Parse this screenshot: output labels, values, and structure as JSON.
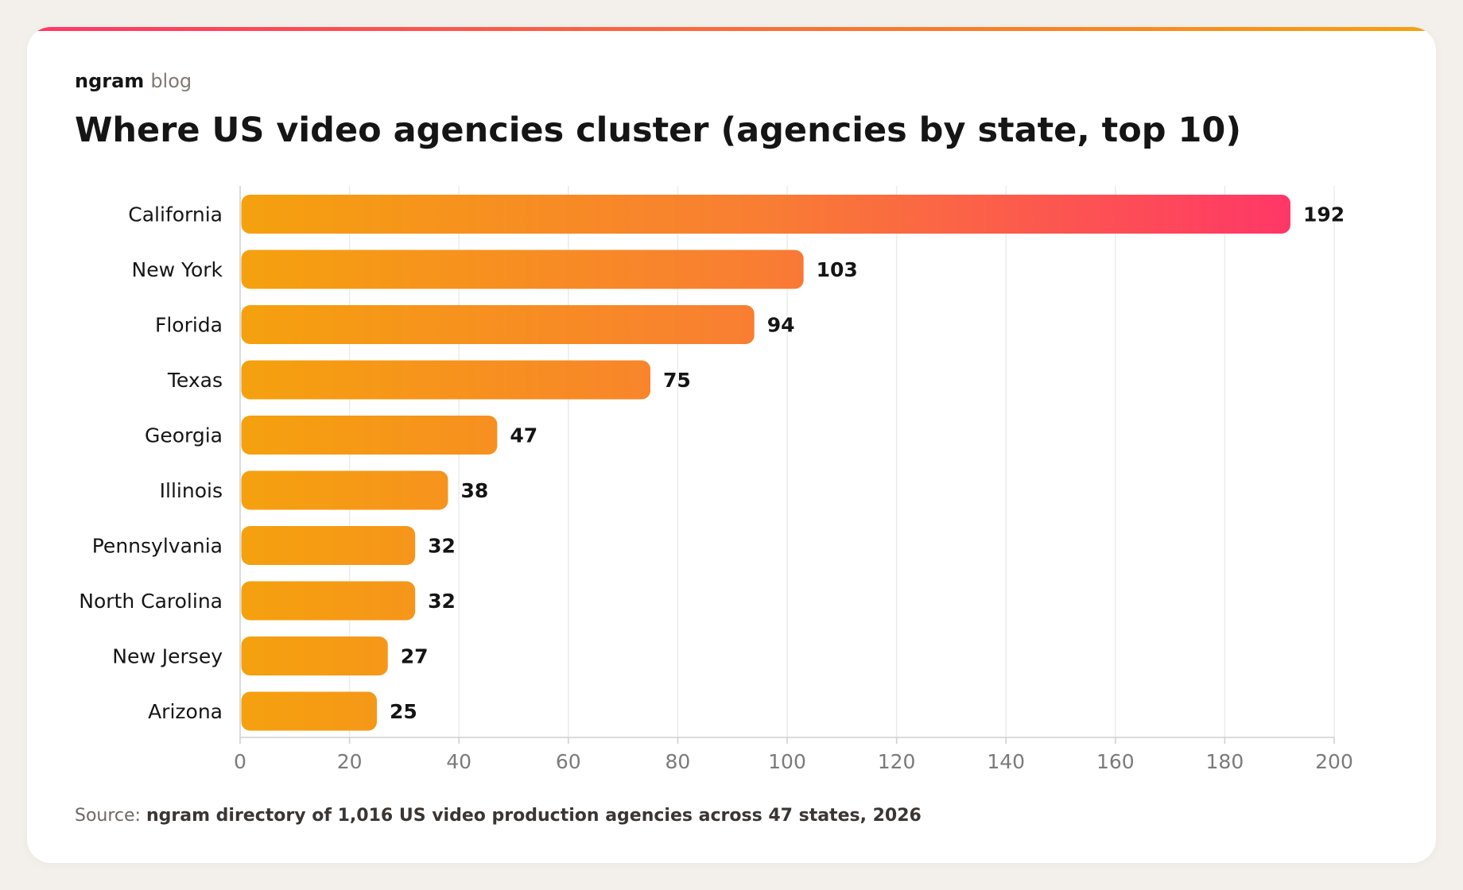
{
  "brand": {
    "name": "ngram",
    "suffix": "blog"
  },
  "title": "Where US video agencies cluster (agencies by state, top 10)",
  "source": {
    "label": "Source:",
    "text": "ngram directory of 1,016 US video production agencies across 47 states, 2026"
  },
  "colors": {
    "page_background": "#f3f0eb",
    "card_background": "#ffffff",
    "bar_start": "#f5a10e",
    "bar_end": "#ff3767",
    "gridline": "#ececec",
    "axis": "#cfcfcf",
    "label_text": "#151515",
    "tick_text": "#7a7a7a"
  },
  "chart_data": {
    "type": "bar",
    "orientation": "horizontal",
    "categories": [
      "California",
      "New York",
      "Florida",
      "Texas",
      "Georgia",
      "Illinois",
      "Pennsylvania",
      "North Carolina",
      "New Jersey",
      "Arizona"
    ],
    "values": [
      192,
      103,
      94,
      75,
      47,
      38,
      32,
      32,
      27,
      25
    ],
    "xlim": [
      0,
      200
    ],
    "xticks": [
      0,
      20,
      40,
      60,
      80,
      100,
      120,
      140,
      160,
      180,
      200
    ],
    "grid": true,
    "data_labels": true,
    "xlabel": "",
    "ylabel": ""
  }
}
